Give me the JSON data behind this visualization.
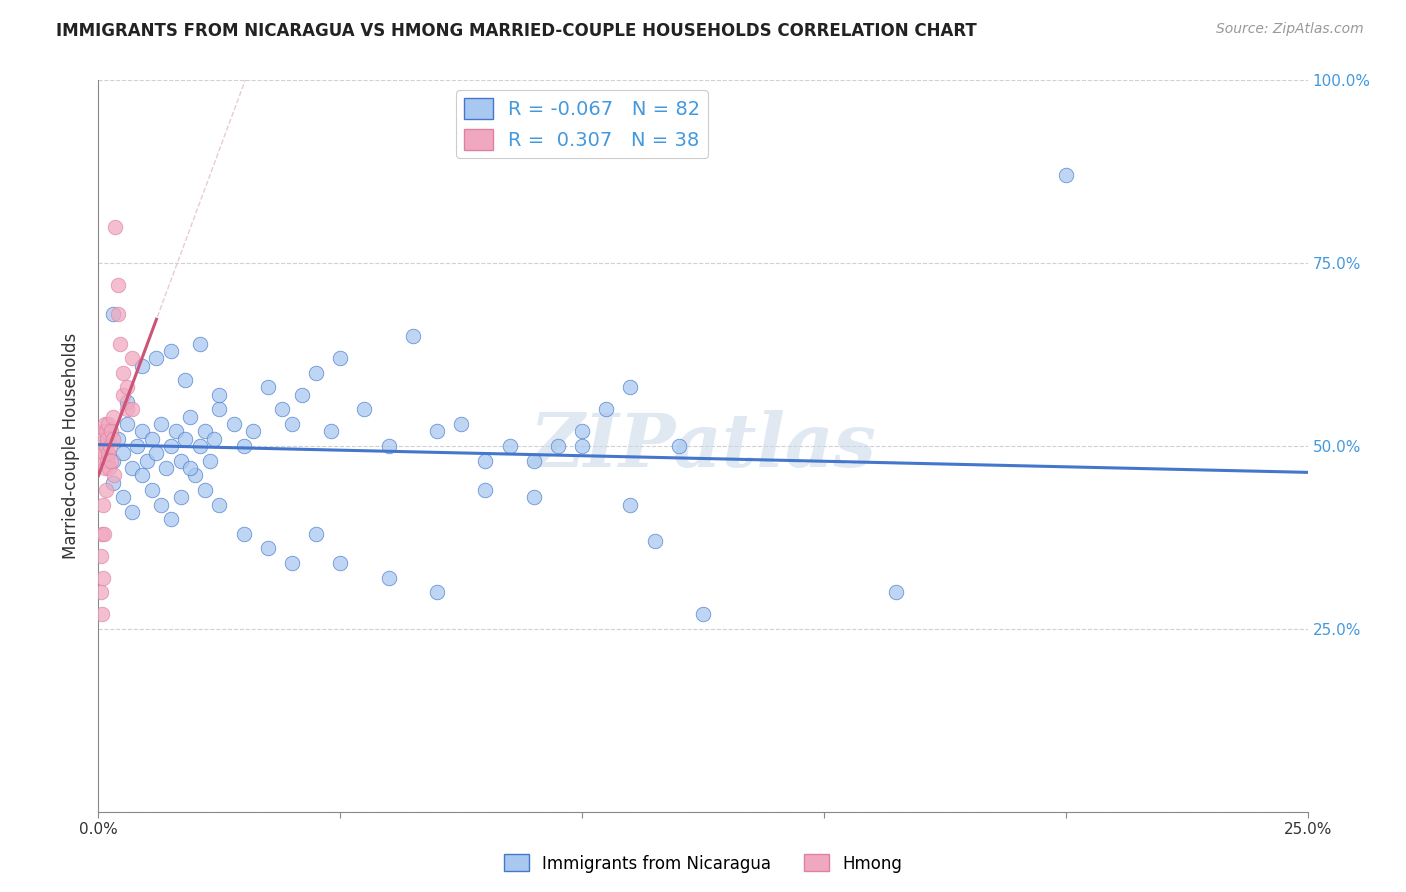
{
  "title": "IMMIGRANTS FROM NICARAGUA VS HMONG MARRIED-COUPLE HOUSEHOLDS CORRELATION CHART",
  "source": "Source: ZipAtlas.com",
  "ylabel_left": "Married-couple Households",
  "xlim": [
    0,
    0.25
  ],
  "ylim": [
    0,
    1.0
  ],
  "blue_color": "#a8c8f0",
  "pink_color": "#f0a8c0",
  "blue_line_color": "#4477cc",
  "pink_line_color": "#cc5577",
  "blue_R": -0.067,
  "blue_N": 82,
  "pink_R": 0.307,
  "pink_N": 38,
  "blue_x": [
    0.001,
    0.002,
    0.003,
    0.004,
    0.005,
    0.006,
    0.007,
    0.008,
    0.009,
    0.01,
    0.011,
    0.012,
    0.013,
    0.014,
    0.015,
    0.016,
    0.017,
    0.018,
    0.019,
    0.02,
    0.021,
    0.022,
    0.023,
    0.024,
    0.025,
    0.028,
    0.03,
    0.032,
    0.035,
    0.038,
    0.04,
    0.042,
    0.045,
    0.048,
    0.05,
    0.055,
    0.06,
    0.065,
    0.07,
    0.075,
    0.08,
    0.085,
    0.09,
    0.095,
    0.1,
    0.105,
    0.11,
    0.115,
    0.12,
    0.125,
    0.003,
    0.005,
    0.007,
    0.009,
    0.011,
    0.013,
    0.015,
    0.017,
    0.019,
    0.022,
    0.025,
    0.03,
    0.035,
    0.04,
    0.045,
    0.05,
    0.06,
    0.07,
    0.08,
    0.09,
    0.1,
    0.11,
    0.003,
    0.006,
    0.009,
    0.012,
    0.015,
    0.018,
    0.021,
    0.025,
    0.165,
    0.2
  ],
  "blue_y": [
    0.5,
    0.52,
    0.48,
    0.51,
    0.49,
    0.53,
    0.47,
    0.5,
    0.52,
    0.48,
    0.51,
    0.49,
    0.53,
    0.47,
    0.5,
    0.52,
    0.48,
    0.51,
    0.54,
    0.46,
    0.5,
    0.52,
    0.48,
    0.51,
    0.55,
    0.53,
    0.5,
    0.52,
    0.58,
    0.55,
    0.53,
    0.57,
    0.6,
    0.52,
    0.62,
    0.55,
    0.5,
    0.65,
    0.52,
    0.53,
    0.48,
    0.5,
    0.43,
    0.5,
    0.52,
    0.55,
    0.42,
    0.37,
    0.5,
    0.27,
    0.45,
    0.43,
    0.41,
    0.46,
    0.44,
    0.42,
    0.4,
    0.43,
    0.47,
    0.44,
    0.42,
    0.38,
    0.36,
    0.34,
    0.38,
    0.34,
    0.32,
    0.3,
    0.44,
    0.48,
    0.5,
    0.58,
    0.68,
    0.56,
    0.61,
    0.62,
    0.63,
    0.59,
    0.64,
    0.57,
    0.3,
    0.87
  ],
  "pink_x": [
    0.0008,
    0.0009,
    0.001,
    0.001,
    0.0012,
    0.0013,
    0.0014,
    0.0015,
    0.0016,
    0.0017,
    0.0018,
    0.002,
    0.002,
    0.0022,
    0.0024,
    0.0025,
    0.0026,
    0.003,
    0.003,
    0.0032,
    0.0035,
    0.004,
    0.004,
    0.0045,
    0.005,
    0.005,
    0.006,
    0.006,
    0.007,
    0.007,
    0.0005,
    0.0006,
    0.0007,
    0.0008,
    0.001,
    0.001,
    0.0012,
    0.0015
  ],
  "pink_y": [
    0.5,
    0.52,
    0.48,
    0.51,
    0.49,
    0.53,
    0.47,
    0.5,
    0.52,
    0.48,
    0.51,
    0.49,
    0.53,
    0.47,
    0.5,
    0.52,
    0.48,
    0.51,
    0.54,
    0.46,
    0.8,
    0.72,
    0.68,
    0.64,
    0.6,
    0.57,
    0.55,
    0.58,
    0.62,
    0.55,
    0.35,
    0.3,
    0.27,
    0.38,
    0.32,
    0.42,
    0.38,
    0.44
  ],
  "watermark": "ZIPatlas",
  "legend_blue_label": "Immigrants from Nicaragua",
  "legend_pink_label": "Hmong"
}
